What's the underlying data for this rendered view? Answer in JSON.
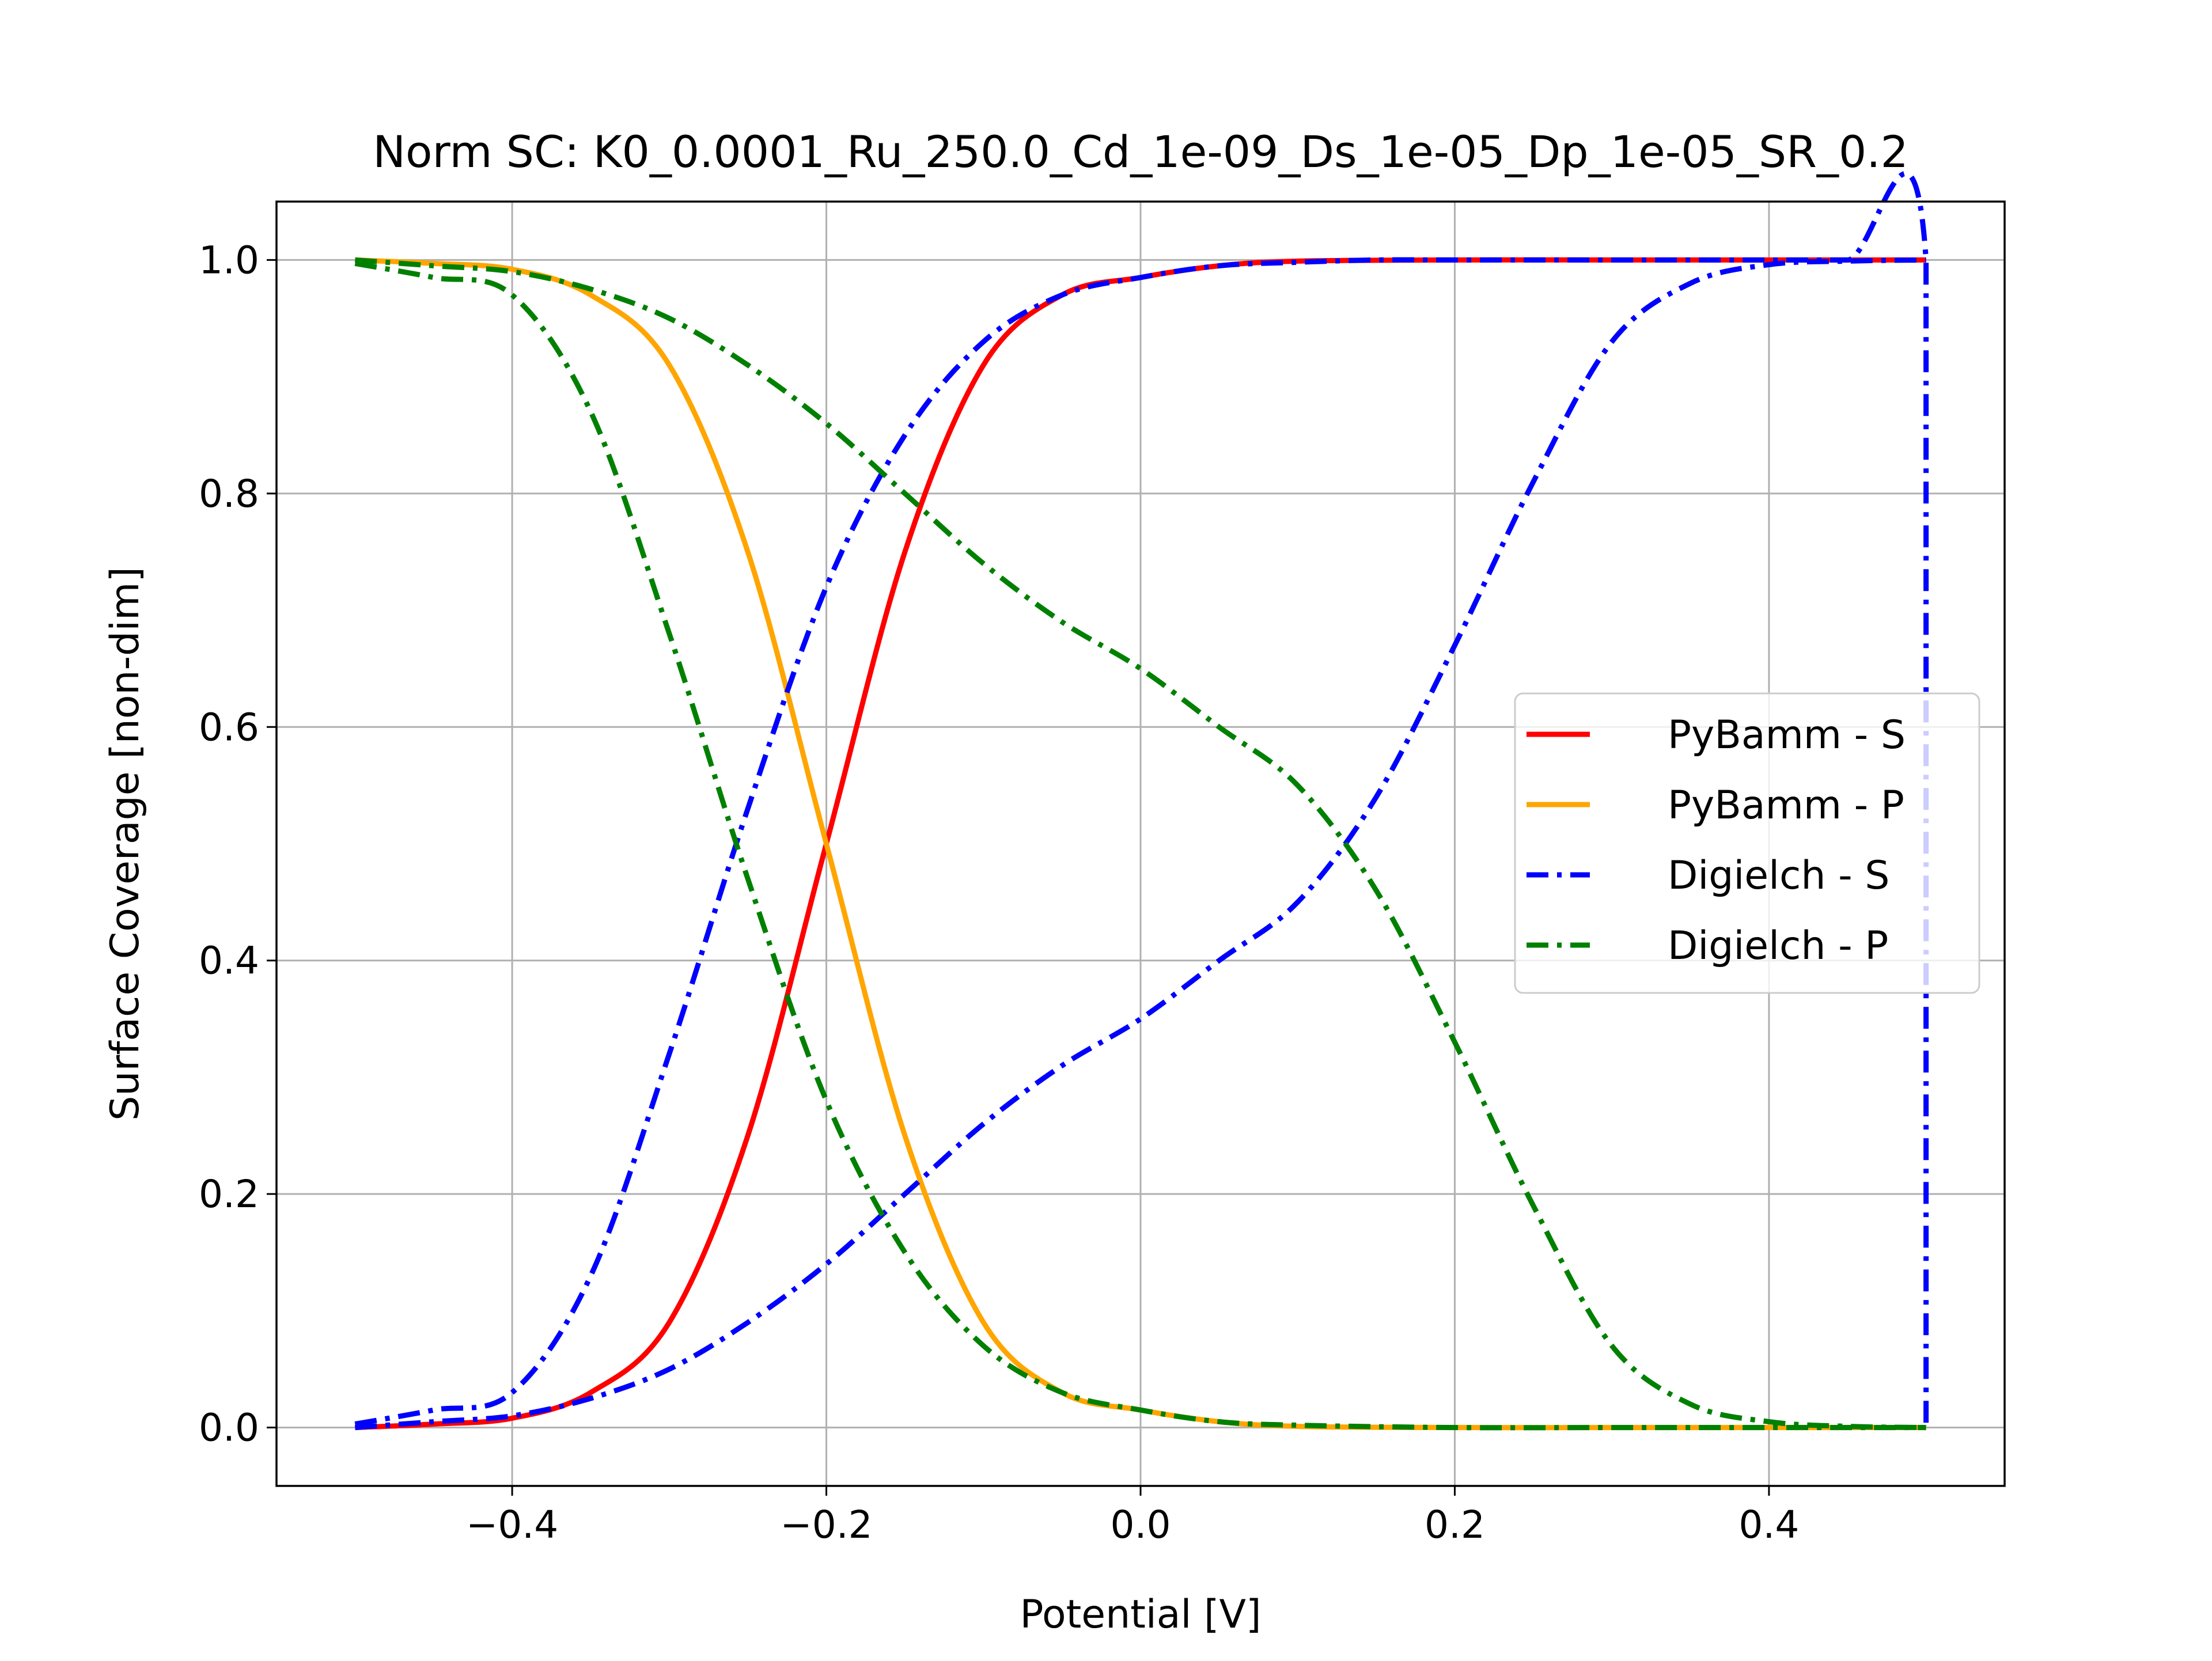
{
  "chart_data": {
    "type": "line",
    "title": "Norm SC: K0_0.0001_Ru_250.0_Cd_1e-09_Ds_1e-05_Dp_1e-05_SR_0.2",
    "xlabel": "Potential [V]",
    "ylabel": "Surface Coverage [non-dim]",
    "xlim": [
      -0.55,
      0.55
    ],
    "ylim": [
      -0.05,
      1.05
    ],
    "xticks": [
      -0.4,
      -0.2,
      0.0,
      0.2,
      0.4
    ],
    "xtick_labels": [
      "−0.4",
      "−0.2",
      "0.0",
      "0.2",
      "0.4"
    ],
    "yticks": [
      0.0,
      0.2,
      0.4,
      0.6,
      0.8,
      1.0
    ],
    "ytick_labels": [
      "0.0",
      "0.2",
      "0.4",
      "0.6",
      "0.8",
      "1.0"
    ],
    "grid": true,
    "legend_position": "center-right",
    "series": [
      {
        "name": "PyBamm - S",
        "color": "#ff0000",
        "style": "solid",
        "x": [
          -0.5,
          -0.45,
          -0.4,
          -0.35,
          -0.3,
          -0.25,
          -0.2,
          -0.15,
          -0.1,
          -0.05,
          0.0,
          0.05,
          0.1,
          0.2,
          0.3,
          0.4,
          0.5
        ],
        "y": [
          0.0,
          0.003,
          0.008,
          0.03,
          0.09,
          0.25,
          0.5,
          0.75,
          0.91,
          0.97,
          0.985,
          0.995,
          0.999,
          1.0,
          1.0,
          1.0,
          1.0
        ]
      },
      {
        "name": "PyBamm - P",
        "color": "#ffa500",
        "style": "solid",
        "x": [
          -0.5,
          -0.45,
          -0.4,
          -0.35,
          -0.3,
          -0.25,
          -0.2,
          -0.15,
          -0.1,
          -0.05,
          0.0,
          0.05,
          0.1,
          0.2,
          0.3,
          0.4,
          0.5
        ],
        "y": [
          1.0,
          0.997,
          0.992,
          0.97,
          0.91,
          0.75,
          0.5,
          0.25,
          0.09,
          0.03,
          0.015,
          0.005,
          0.001,
          0.0,
          0.0,
          0.0,
          0.0
        ]
      },
      {
        "name": "Digielch - S",
        "color": "#0000ff",
        "style": "dashdot",
        "x": [
          -0.5,
          -0.45,
          -0.4,
          -0.35,
          -0.3,
          -0.25,
          -0.2,
          -0.15,
          -0.1,
          -0.05,
          0.0,
          0.05,
          0.1,
          0.15,
          0.2,
          0.25,
          0.3,
          0.35,
          0.4,
          0.45,
          0.5,
          0.5
        ],
        "y": [
          0.003,
          0.015,
          0.03,
          0.13,
          0.32,
          0.53,
          0.72,
          0.85,
          0.93,
          0.97,
          0.985,
          0.995,
          0.998,
          1.0,
          1.0,
          1.0,
          1.0,
          1.0,
          1.0,
          1.0,
          1.0,
          0.0
        ]
      },
      {
        "name": "Digielch - S (second)",
        "color": "#0000ff",
        "style": "dashdot",
        "x": [
          -0.5,
          -0.45,
          -0.4,
          -0.35,
          -0.3,
          -0.25,
          -0.2,
          -0.15,
          -0.1,
          -0.05,
          0.0,
          0.05,
          0.1,
          0.15,
          0.2,
          0.25,
          0.3,
          0.35,
          0.4,
          0.45,
          0.5
        ],
        "y": [
          0.0,
          0.005,
          0.01,
          0.025,
          0.05,
          0.09,
          0.14,
          0.2,
          0.26,
          0.31,
          0.35,
          0.4,
          0.45,
          0.54,
          0.67,
          0.81,
          0.93,
          0.98,
          0.996,
          0.999,
          1.0
        ]
      },
      {
        "name": "Digielch - P",
        "color": "#008000",
        "style": "dashdot",
        "x": [
          -0.5,
          -0.45,
          -0.4,
          -0.35,
          -0.3,
          -0.25,
          -0.2,
          -0.15,
          -0.1,
          -0.05,
          0.0,
          0.05,
          0.1,
          0.2,
          0.3,
          0.4,
          0.5
        ],
        "y": [
          0.997,
          0.985,
          0.97,
          0.87,
          0.68,
          0.47,
          0.28,
          0.15,
          0.07,
          0.03,
          0.015,
          0.005,
          0.002,
          0.0,
          0.0,
          0.0,
          0.0
        ]
      },
      {
        "name": "Digielch - P (second)",
        "color": "#008000",
        "style": "dashdot",
        "x": [
          -0.5,
          -0.45,
          -0.4,
          -0.35,
          -0.3,
          -0.25,
          -0.2,
          -0.15,
          -0.1,
          -0.05,
          0.0,
          0.05,
          0.1,
          0.15,
          0.2,
          0.25,
          0.3,
          0.35,
          0.4,
          0.45,
          0.5
        ],
        "y": [
          1.0,
          0.995,
          0.99,
          0.975,
          0.95,
          0.91,
          0.86,
          0.8,
          0.74,
          0.69,
          0.65,
          0.6,
          0.55,
          0.46,
          0.33,
          0.19,
          0.07,
          0.02,
          0.005,
          0.001,
          0.0
        ]
      }
    ],
    "legend": [
      {
        "label": "PyBamm - S",
        "color": "#ff0000",
        "style": "solid"
      },
      {
        "label": "PyBamm - P",
        "color": "#ffa500",
        "style": "solid"
      },
      {
        "label": "Digielch - S",
        "color": "#0000ff",
        "style": "dashdot"
      },
      {
        "label": "Digielch - P",
        "color": "#008000",
        "style": "dashdot"
      }
    ]
  }
}
